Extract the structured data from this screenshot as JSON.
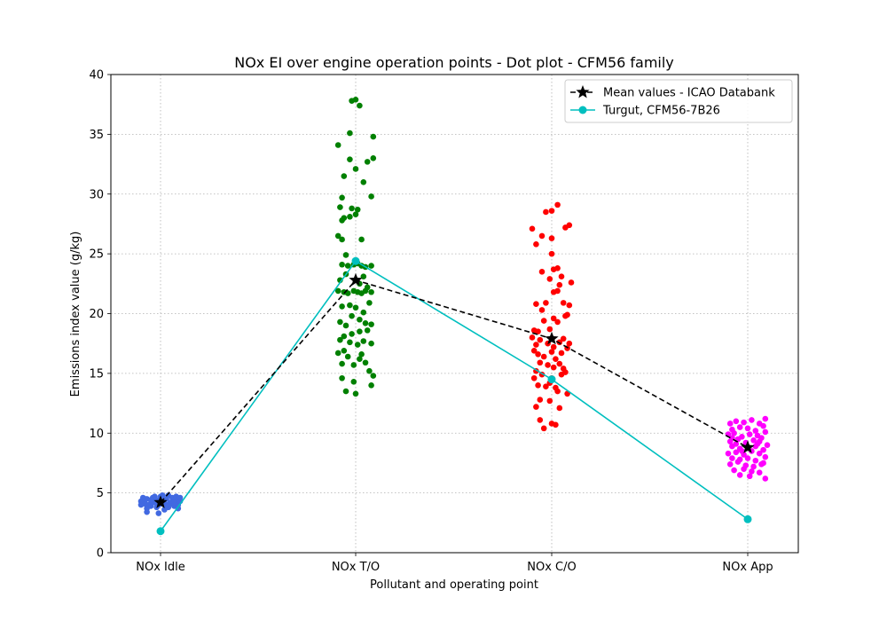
{
  "chart_data": {
    "type": "scatter",
    "title": "NOx EI over engine operation points - Dot plot - CFM56 family",
    "xlabel": "Pollutant and operating point",
    "ylabel": "Emissions index value (g/kg)",
    "categories": [
      "NOx Idle",
      "NOx T/O",
      "NOx C/O",
      "NOx App"
    ],
    "ylim": [
      0,
      40
    ],
    "yticks": [
      0,
      5,
      10,
      15,
      20,
      25,
      30,
      35,
      40
    ],
    "grid": true,
    "legend_position": "top-right",
    "dot_series": [
      {
        "category": "NOx Idle",
        "color": "#4169e1",
        "points": [
          [
            -0.1,
            4.3
          ],
          [
            -0.08,
            4.1
          ],
          [
            -0.07,
            4.5
          ],
          [
            -0.05,
            3.9
          ],
          [
            -0.04,
            4.6
          ],
          [
            -0.03,
            4.2
          ],
          [
            -0.02,
            4.4
          ],
          [
            -0.01,
            4.0
          ],
          [
            0.0,
            4.7
          ],
          [
            0.01,
            4.3
          ],
          [
            0.02,
            4.1
          ],
          [
            0.03,
            4.5
          ],
          [
            0.05,
            4.2
          ],
          [
            0.06,
            4.6
          ],
          [
            0.07,
            3.9
          ],
          [
            0.08,
            4.4
          ],
          [
            0.09,
            4.0
          ],
          [
            0.1,
            4.3
          ],
          [
            -0.09,
            4.6
          ],
          [
            -0.06,
            4.0
          ],
          [
            0.04,
            4.8
          ],
          [
            -0.02,
            3.8
          ],
          [
            0.01,
            4.8
          ],
          [
            0.06,
            4.1
          ],
          [
            0.09,
            3.7
          ],
          [
            -0.07,
            3.7
          ],
          [
            -0.03,
            4.7
          ],
          [
            0.04,
            3.8
          ],
          [
            -0.08,
            4.5
          ],
          [
            0.08,
            4.7
          ],
          [
            -0.1,
            4.0
          ],
          [
            0.1,
            4.6
          ],
          [
            -0.04,
            4.2
          ],
          [
            0.03,
            4.0
          ],
          [
            -0.07,
            3.4
          ],
          [
            -0.01,
            3.3
          ],
          [
            0.02,
            3.6
          ],
          [
            -0.05,
            4.4
          ],
          [
            0.07,
            4.2
          ],
          [
            0.0,
            4.1
          ]
        ]
      },
      {
        "category": "NOx T/O",
        "color": "#008000",
        "points": [
          [
            -0.09,
            34.1
          ],
          [
            -0.02,
            37.8
          ],
          [
            0.0,
            37.9
          ],
          [
            0.02,
            37.4
          ],
          [
            0.09,
            34.8
          ],
          [
            -0.03,
            35.1
          ],
          [
            -0.03,
            32.9
          ],
          [
            0.0,
            32.1
          ],
          [
            0.09,
            33.0
          ],
          [
            0.06,
            32.7
          ],
          [
            0.04,
            31.0
          ],
          [
            -0.06,
            31.5
          ],
          [
            -0.07,
            29.7
          ],
          [
            -0.08,
            28.9
          ],
          [
            -0.06,
            28.0
          ],
          [
            -0.03,
            28.1
          ],
          [
            -0.02,
            28.8
          ],
          [
            0.0,
            28.3
          ],
          [
            0.01,
            28.7
          ],
          [
            0.08,
            29.8
          ],
          [
            -0.07,
            27.8
          ],
          [
            -0.09,
            26.5
          ],
          [
            -0.07,
            26.2
          ],
          [
            0.03,
            26.2
          ],
          [
            -0.05,
            24.9
          ],
          [
            -0.07,
            24.1
          ],
          [
            -0.04,
            24.0
          ],
          [
            -0.01,
            24.1
          ],
          [
            0.01,
            24.2
          ],
          [
            0.03,
            24.0
          ],
          [
            0.05,
            23.9
          ],
          [
            0.08,
            24.0
          ],
          [
            -0.08,
            22.8
          ],
          [
            0.04,
            23.1
          ],
          [
            -0.09,
            21.9
          ],
          [
            -0.06,
            21.8
          ],
          [
            -0.04,
            21.7
          ],
          [
            -0.01,
            21.9
          ],
          [
            0.01,
            21.8
          ],
          [
            0.03,
            21.7
          ],
          [
            0.05,
            21.9
          ],
          [
            0.08,
            21.8
          ],
          [
            -0.07,
            20.6
          ],
          [
            -0.03,
            20.7
          ],
          [
            0.0,
            20.5
          ],
          [
            0.07,
            20.9
          ],
          [
            -0.08,
            19.3
          ],
          [
            -0.05,
            19.0
          ],
          [
            0.02,
            19.5
          ],
          [
            0.05,
            19.2
          ],
          [
            0.08,
            19.1
          ],
          [
            -0.06,
            18.1
          ],
          [
            -0.02,
            18.3
          ],
          [
            0.02,
            18.5
          ],
          [
            0.06,
            18.6
          ],
          [
            -0.08,
            17.8
          ],
          [
            -0.03,
            17.6
          ],
          [
            0.01,
            17.4
          ],
          [
            0.04,
            17.7
          ],
          [
            0.08,
            17.5
          ],
          [
            -0.09,
            16.7
          ],
          [
            -0.04,
            16.4
          ],
          [
            0.03,
            16.6
          ],
          [
            -0.07,
            15.8
          ],
          [
            -0.01,
            15.7
          ],
          [
            0.05,
            15.9
          ],
          [
            0.07,
            15.2
          ],
          [
            0.09,
            14.8
          ],
          [
            -0.07,
            14.6
          ],
          [
            -0.01,
            14.3
          ],
          [
            0.08,
            14.0
          ],
          [
            -0.05,
            13.5
          ],
          [
            0.0,
            13.3
          ],
          [
            0.02,
            22.5
          ],
          [
            -0.05,
            23.3
          ],
          [
            0.06,
            22.2
          ],
          [
            0.04,
            20.1
          ],
          [
            -0.02,
            19.8
          ],
          [
            0.02,
            16.2
          ],
          [
            -0.06,
            16.9
          ]
        ]
      },
      {
        "category": "NOx C/O",
        "color": "#ff0000",
        "points": [
          [
            -0.1,
            27.1
          ],
          [
            -0.03,
            28.5
          ],
          [
            0.0,
            28.6
          ],
          [
            0.03,
            29.1
          ],
          [
            0.09,
            27.4
          ],
          [
            0.07,
            27.2
          ],
          [
            -0.05,
            26.5
          ],
          [
            -0.08,
            25.8
          ],
          [
            0.0,
            26.3
          ],
          [
            0.0,
            25.0
          ],
          [
            -0.05,
            23.5
          ],
          [
            0.01,
            23.7
          ],
          [
            0.03,
            23.8
          ],
          [
            0.05,
            23.1
          ],
          [
            -0.01,
            22.9
          ],
          [
            0.04,
            22.4
          ],
          [
            0.1,
            22.6
          ],
          [
            0.01,
            21.8
          ],
          [
            0.03,
            21.9
          ],
          [
            -0.03,
            20.9
          ],
          [
            -0.08,
            20.8
          ],
          [
            -0.05,
            20.3
          ],
          [
            0.06,
            20.9
          ],
          [
            0.09,
            20.7
          ],
          [
            -0.04,
            19.4
          ],
          [
            0.01,
            19.6
          ],
          [
            0.07,
            19.8
          ],
          [
            0.08,
            19.9
          ],
          [
            -0.09,
            18.6
          ],
          [
            -0.07,
            18.5
          ],
          [
            -0.01,
            18.7
          ],
          [
            0.03,
            19.3
          ],
          [
            -0.1,
            18.0
          ],
          [
            -0.08,
            17.4
          ],
          [
            -0.06,
            17.8
          ],
          [
            -0.02,
            17.5
          ],
          [
            0.01,
            17.2
          ],
          [
            0.04,
            17.6
          ],
          [
            0.06,
            17.9
          ],
          [
            0.09,
            17.5
          ],
          [
            -0.09,
            16.9
          ],
          [
            -0.07,
            16.6
          ],
          [
            -0.04,
            16.4
          ],
          [
            0.0,
            16.8
          ],
          [
            0.02,
            16.2
          ],
          [
            0.05,
            16.7
          ],
          [
            0.08,
            17.1
          ],
          [
            -0.06,
            15.9
          ],
          [
            -0.02,
            15.7
          ],
          [
            0.01,
            15.5
          ],
          [
            0.04,
            15.8
          ],
          [
            -0.08,
            15.2
          ],
          [
            -0.05,
            14.9
          ],
          [
            0.0,
            14.6
          ],
          [
            0.05,
            14.9
          ],
          [
            -0.07,
            14.0
          ],
          [
            -0.03,
            13.9
          ],
          [
            0.02,
            13.8
          ],
          [
            0.08,
            13.3
          ],
          [
            -0.06,
            12.8
          ],
          [
            -0.01,
            12.7
          ],
          [
            -0.08,
            12.2
          ],
          [
            0.04,
            12.1
          ],
          [
            -0.06,
            11.1
          ],
          [
            0.0,
            10.8
          ],
          [
            0.02,
            10.7
          ],
          [
            -0.04,
            10.4
          ],
          [
            0.07,
            15.1
          ],
          [
            -0.01,
            14.2
          ],
          [
            0.03,
            13.5
          ],
          [
            0.06,
            15.4
          ],
          [
            -0.09,
            14.6
          ]
        ]
      },
      {
        "category": "NOx App",
        "color": "#ff00ff",
        "points": [
          [
            -0.09,
            10.8
          ],
          [
            -0.06,
            11.0
          ],
          [
            -0.02,
            10.9
          ],
          [
            0.02,
            11.1
          ],
          [
            0.06,
            10.8
          ],
          [
            0.09,
            11.2
          ],
          [
            -0.08,
            10.3
          ],
          [
            -0.04,
            10.5
          ],
          [
            0.0,
            10.4
          ],
          [
            0.04,
            10.2
          ],
          [
            0.08,
            10.6
          ],
          [
            -0.1,
            9.9
          ],
          [
            -0.07,
            10.0
          ],
          [
            -0.03,
            9.7
          ],
          [
            0.01,
            9.9
          ],
          [
            0.05,
            9.8
          ],
          [
            0.09,
            10.1
          ],
          [
            -0.09,
            9.3
          ],
          [
            -0.05,
            9.5
          ],
          [
            -0.01,
            9.2
          ],
          [
            0.03,
            9.4
          ],
          [
            0.07,
            9.6
          ],
          [
            0.1,
            9.0
          ],
          [
            -0.08,
            8.9
          ],
          [
            -0.04,
            8.7
          ],
          [
            0.0,
            8.8
          ],
          [
            0.04,
            8.9
          ],
          [
            0.08,
            8.6
          ],
          [
            -0.1,
            8.3
          ],
          [
            -0.06,
            8.4
          ],
          [
            -0.02,
            8.2
          ],
          [
            0.02,
            8.5
          ],
          [
            0.06,
            8.3
          ],
          [
            0.09,
            8.0
          ],
          [
            -0.08,
            7.9
          ],
          [
            -0.04,
            7.8
          ],
          [
            0.0,
            7.9
          ],
          [
            0.04,
            7.7
          ],
          [
            0.08,
            7.5
          ],
          [
            -0.09,
            7.4
          ],
          [
            -0.05,
            7.6
          ],
          [
            -0.01,
            7.3
          ],
          [
            0.03,
            7.2
          ],
          [
            0.07,
            7.4
          ],
          [
            -0.07,
            6.9
          ],
          [
            -0.02,
            7.0
          ],
          [
            0.02,
            6.8
          ],
          [
            0.06,
            6.7
          ],
          [
            -0.04,
            6.5
          ],
          [
            0.01,
            6.4
          ],
          [
            0.09,
            6.2
          ],
          [
            -0.06,
            9.1
          ],
          [
            0.05,
            9.1
          ],
          [
            -0.03,
            8.5
          ],
          [
            0.06,
            9.3
          ],
          [
            -0.08,
            9.6
          ]
        ]
      }
    ],
    "series": [
      {
        "name": "Mean values - ICAO Databank",
        "color": "#000000",
        "line_style": "dashed",
        "marker": "star",
        "values": [
          4.2,
          22.8,
          17.9,
          8.8
        ]
      },
      {
        "name": "Turgut, CFM56-7B26",
        "color": "#00bfbf",
        "line_style": "solid",
        "marker": "circle",
        "values": [
          1.8,
          24.4,
          14.5,
          2.8
        ]
      }
    ]
  }
}
